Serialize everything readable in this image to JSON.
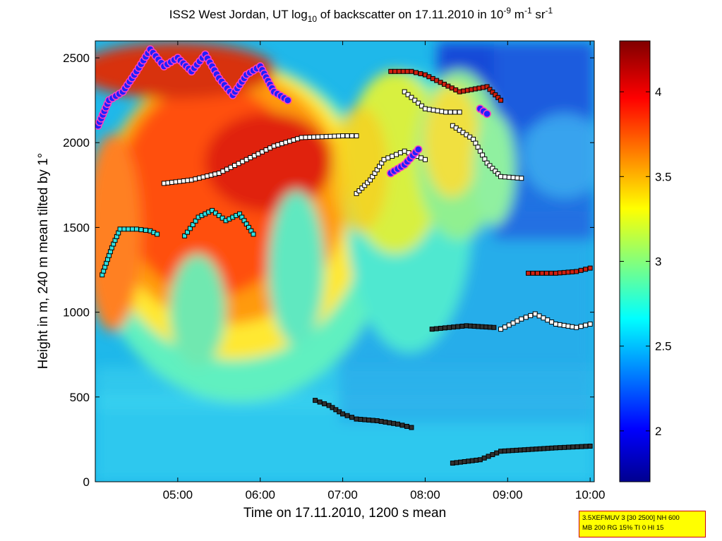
{
  "chart_data": {
    "type": "heatmap",
    "title": {
      "prefix": "ISS2 West Jordan, UT log",
      "sub": "10",
      "mid": " of backscatter on 17.11.2010 in 10",
      "sup1": "-9",
      "unit1": " m",
      "sup2": "-1",
      "unit2": " sr",
      "sup3": "-1"
    },
    "xlabel": "Time on 17.11.2010, 1200 s mean",
    "ylabel": "Height in m, 240 m mean tilted by 1°",
    "xlim": [
      "04:00",
      "10:03"
    ],
    "ylim": [
      0,
      2600
    ],
    "x_ticks": [
      "05:00",
      "06:00",
      "07:00",
      "08:00",
      "09:00",
      "10:00"
    ],
    "y_ticks": [
      0,
      500,
      1000,
      1500,
      2000,
      2500
    ],
    "colorbar": {
      "colormap": "jet",
      "range": [
        1.7,
        4.3
      ],
      "ticks": [
        "2",
        "2.5",
        "3",
        "3.5",
        "4"
      ]
    },
    "layer_markers": [
      {
        "style": "dark-filled",
        "points": [
          [
            "06:40",
            480
          ],
          [
            "06:50",
            450
          ],
          [
            "07:00",
            400
          ],
          [
            "07:10",
            370
          ],
          [
            "07:25",
            360
          ],
          [
            "07:40",
            340
          ],
          [
            "07:50",
            320
          ]
        ]
      },
      {
        "style": "dark-filled",
        "points": [
          [
            "08:20",
            110
          ],
          [
            "08:40",
            130
          ],
          [
            "08:55",
            180
          ],
          [
            "09:15",
            190
          ],
          [
            "09:35",
            200
          ],
          [
            "10:00",
            210
          ]
        ]
      },
      {
        "style": "dark-filled",
        "points": [
          [
            "08:05",
            900
          ],
          [
            "08:30",
            920
          ],
          [
            "08:50",
            910
          ]
        ]
      },
      {
        "style": "white",
        "points": [
          [
            "08:55",
            900
          ],
          [
            "09:10",
            960
          ],
          [
            "09:20",
            990
          ],
          [
            "09:35",
            930
          ],
          [
            "09:50",
            910
          ],
          [
            "10:00",
            930
          ]
        ]
      },
      {
        "style": "red",
        "points": [
          [
            "09:15",
            1230
          ],
          [
            "09:35",
            1230
          ],
          [
            "09:50",
            1240
          ],
          [
            "10:00",
            1260
          ]
        ]
      },
      {
        "style": "cyan",
        "points": [
          [
            "04:05",
            1220
          ],
          [
            "04:12",
            1380
          ],
          [
            "04:18",
            1490
          ],
          [
            "04:30",
            1490
          ],
          [
            "04:40",
            1480
          ],
          [
            "04:45",
            1460
          ]
        ]
      },
      {
        "style": "cyan",
        "points": [
          [
            "05:05",
            1450
          ],
          [
            "05:15",
            1560
          ],
          [
            "05:25",
            1600
          ],
          [
            "05:35",
            1540
          ],
          [
            "05:45",
            1580
          ],
          [
            "05:55",
            1460
          ]
        ]
      },
      {
        "style": "white",
        "points": [
          [
            "04:50",
            1760
          ],
          [
            "05:10",
            1780
          ],
          [
            "05:30",
            1820
          ],
          [
            "05:50",
            1900
          ],
          [
            "06:10",
            1980
          ],
          [
            "06:30",
            2030
          ],
          [
            "07:00",
            2040
          ],
          [
            "07:10",
            2040
          ]
        ]
      },
      {
        "style": "white",
        "points": [
          [
            "07:10",
            1700
          ],
          [
            "07:20",
            1780
          ],
          [
            "07:30",
            1900
          ],
          [
            "07:45",
            1950
          ],
          [
            "08:00",
            1900
          ]
        ]
      },
      {
        "style": "white",
        "points": [
          [
            "08:20",
            2100
          ],
          [
            "08:35",
            2020
          ],
          [
            "08:45",
            1880
          ],
          [
            "08:55",
            1800
          ],
          [
            "09:10",
            1790
          ]
        ]
      },
      {
        "style": "white",
        "points": [
          [
            "07:45",
            2300
          ],
          [
            "08:00",
            2200
          ],
          [
            "08:15",
            2180
          ],
          [
            "08:25",
            2180
          ]
        ]
      },
      {
        "style": "blue-circle",
        "points": [
          [
            "04:02",
            2100
          ],
          [
            "04:10",
            2250
          ],
          [
            "04:20",
            2300
          ],
          [
            "04:30",
            2420
          ],
          [
            "04:40",
            2550
          ],
          [
            "04:50",
            2450
          ],
          [
            "05:00",
            2500
          ],
          [
            "05:10",
            2420
          ],
          [
            "05:20",
            2520
          ],
          [
            "05:30",
            2380
          ],
          [
            "05:40",
            2280
          ],
          [
            "05:50",
            2400
          ],
          [
            "06:00",
            2450
          ],
          [
            "06:10",
            2300
          ],
          [
            "06:20",
            2250
          ]
        ]
      },
      {
        "style": "blue-circle",
        "points": [
          [
            "07:35",
            1820
          ],
          [
            "07:45",
            1870
          ],
          [
            "07:55",
            1960
          ]
        ]
      },
      {
        "style": "blue-circle",
        "points": [
          [
            "08:40",
            2200
          ],
          [
            "08:45",
            2170
          ]
        ]
      },
      {
        "style": "red",
        "points": [
          [
            "07:35",
            2420
          ],
          [
            "07:50",
            2420
          ],
          [
            "08:00",
            2400
          ],
          [
            "08:25",
            2300
          ],
          [
            "08:45",
            2330
          ],
          [
            "08:55",
            2250
          ]
        ]
      }
    ]
  },
  "info_box": {
    "line1": "3.5XEFMUV 3 [30 2500] NH 600",
    "line2": "MB 200 RG 15% TI 0 HI 15"
  }
}
